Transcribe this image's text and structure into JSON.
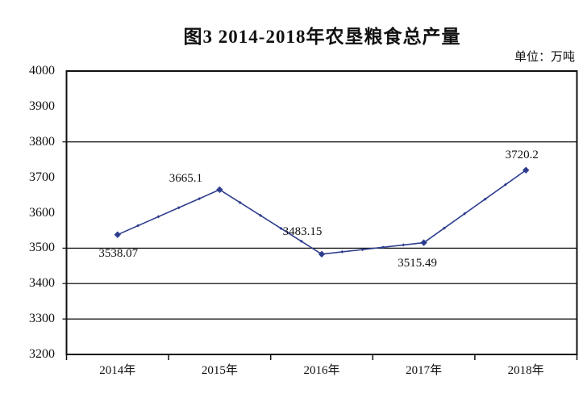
{
  "chart": {
    "title": "图3  2014-2018年农垦粮食总产量",
    "unit_label": "单位：万吨"
  },
  "chart_data": {
    "type": "line",
    "title": "图3  2014-2018年农垦粮食总产量",
    "unit": "万吨",
    "categories": [
      "2014年",
      "2015年",
      "2016年",
      "2017年",
      "2018年"
    ],
    "series": [
      {
        "name": "农垦粮食总产量",
        "values": [
          3538.07,
          3665.1,
          3483.15,
          3515.49,
          3720.2
        ],
        "point_labels": [
          "3538.07",
          "3665.1",
          "3483.15",
          "3515.49",
          "3720.2"
        ]
      }
    ],
    "xlabel": "",
    "ylabel": "",
    "ylim": [
      3200,
      4000
    ],
    "yticks": [
      3200,
      3300,
      3400,
      3500,
      3600,
      3700,
      3800,
      3900,
      4000
    ],
    "gridlines": [
      3300,
      3400,
      3500,
      3800
    ],
    "legend_position": "none",
    "line_color": "#2e3e8e",
    "axis_color": "#111111",
    "marker": "diamond"
  }
}
